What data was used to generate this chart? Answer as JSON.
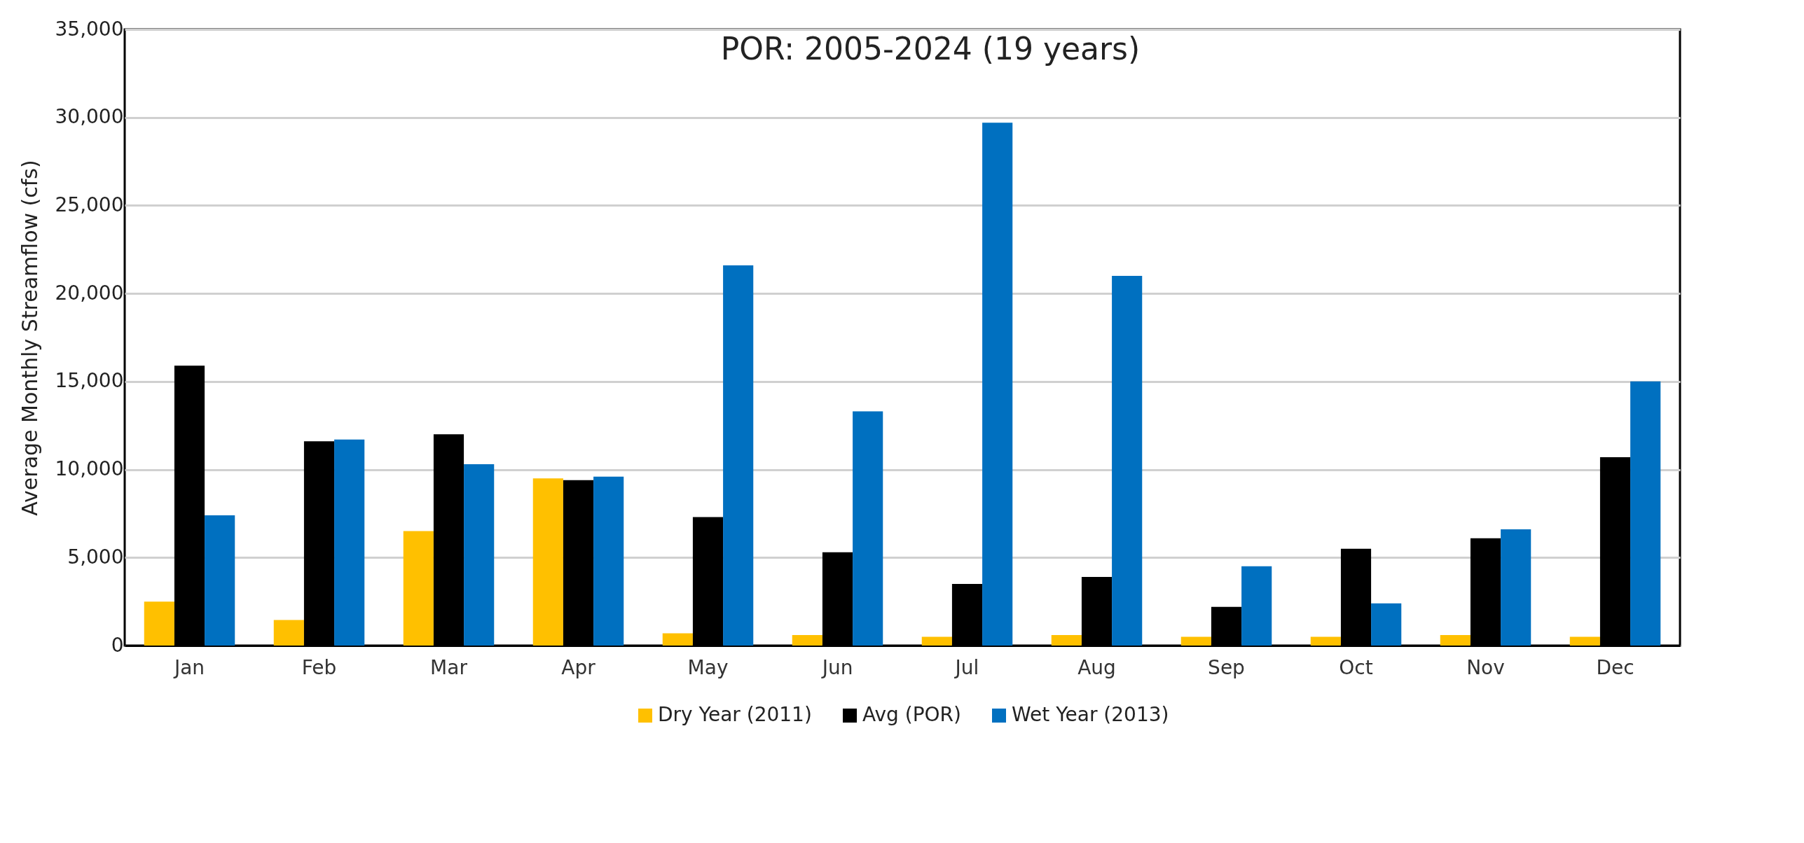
{
  "chart_data": {
    "type": "bar",
    "ylabel": "Average Monthly Streamflow (cfs)",
    "annotations": [
      "POR: 2005-2024 (19 years)"
    ],
    "categories": [
      "Jan",
      "Feb",
      "Mar",
      "Apr",
      "May",
      "Jun",
      "Jul",
      "Aug",
      "Sep",
      "Oct",
      "Nov",
      "Dec"
    ],
    "series": [
      {
        "name": "Dry Year (2011)",
        "color": "#ffc000",
        "values": [
          2500,
          1450,
          6500,
          9500,
          700,
          600,
          500,
          600,
          500,
          500,
          600,
          500
        ]
      },
      {
        "name": "Avg (POR)",
        "color": "#000000",
        "values": [
          15900,
          11600,
          12000,
          9400,
          7300,
          5300,
          3500,
          3900,
          2200,
          5500,
          6100,
          10700
        ]
      },
      {
        "name": "Wet Year (2013)",
        "color": "#0070c0",
        "values": [
          7400,
          11700,
          10300,
          9600,
          21600,
          13300,
          29700,
          21000,
          4500,
          2400,
          6600,
          15000
        ]
      }
    ],
    "ylim": [
      0,
      35000
    ],
    "yticks": [
      0,
      {
        "value": 5000,
        "label": "5,000"
      },
      {
        "value": 10000,
        "label": "10,000"
      },
      {
        "value": 15000,
        "label": "15,000"
      },
      {
        "value": 20000,
        "label": "20,000"
      },
      {
        "value": 25000,
        "label": "25,000"
      },
      {
        "value": 30000,
        "label": "30,000"
      },
      {
        "value": 35000,
        "label": "35,000"
      }
    ],
    "grid": "y",
    "legend": "bottom"
  }
}
